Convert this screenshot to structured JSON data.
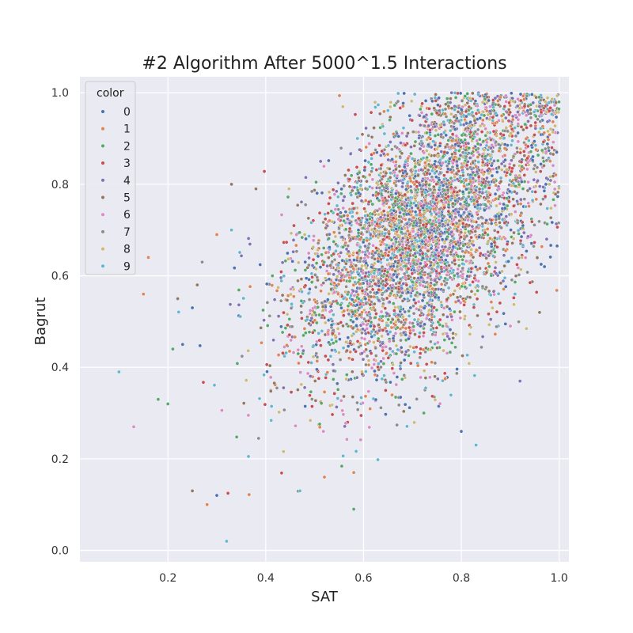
{
  "chart_data": {
    "type": "scatter",
    "title": "#2 Algorithm After 5000^1.5 Interactions",
    "xlabel": "SAT",
    "ylabel": "Bagrut",
    "xlim": [
      0.02,
      1.02
    ],
    "ylim": [
      -0.025,
      1.035
    ],
    "xticks": [
      0.2,
      0.4,
      0.6,
      0.8,
      1.0
    ],
    "yticks": [
      0.0,
      0.2,
      0.4,
      0.6,
      0.8,
      1.0
    ],
    "xtick_labels": [
      "0.2",
      "0.4",
      "0.6",
      "0.8",
      "1.0"
    ],
    "ytick_labels": [
      "0.0",
      "0.2",
      "0.4",
      "0.6",
      "0.8",
      "1.0"
    ],
    "grid": true,
    "background": "#eaeaf2",
    "gridline_color": "#ffffff",
    "legend_placement": "top-left",
    "legend_title": "color",
    "point_count": 5000,
    "series": [
      {
        "name": "0",
        "color": "#4c72b0"
      },
      {
        "name": "1",
        "color": "#dd8452"
      },
      {
        "name": "2",
        "color": "#55a868"
      },
      {
        "name": "3",
        "color": "#c44e52"
      },
      {
        "name": "4",
        "color": "#8172b3"
      },
      {
        "name": "5",
        "color": "#937860"
      },
      {
        "name": "6",
        "color": "#da8bc3"
      },
      {
        "name": "7",
        "color": "#8c8c8c"
      },
      {
        "name": "8",
        "color": "#ccb974"
      },
      {
        "name": "9",
        "color": "#64b5cd"
      }
    ],
    "sample_points": [
      {
        "x": 0.1,
        "y": 0.39,
        "color": "9"
      },
      {
        "x": 0.13,
        "y": 0.27,
        "color": "6"
      },
      {
        "x": 0.15,
        "y": 0.56,
        "color": "1"
      },
      {
        "x": 0.16,
        "y": 0.64,
        "color": "1"
      },
      {
        "x": 0.18,
        "y": 0.33,
        "color": "2"
      },
      {
        "x": 0.2,
        "y": 0.32,
        "color": "2"
      },
      {
        "x": 0.21,
        "y": 0.44,
        "color": "2"
      },
      {
        "x": 0.22,
        "y": 0.55,
        "color": "5"
      },
      {
        "x": 0.23,
        "y": 0.45,
        "color": "0"
      },
      {
        "x": 0.25,
        "y": 0.13,
        "color": "5"
      },
      {
        "x": 0.25,
        "y": 0.53,
        "color": "0"
      },
      {
        "x": 0.26,
        "y": 0.58,
        "color": "5"
      },
      {
        "x": 0.27,
        "y": 0.63,
        "color": "7"
      },
      {
        "x": 0.28,
        "y": 0.1,
        "color": "1"
      },
      {
        "x": 0.3,
        "y": 0.12,
        "color": "0"
      },
      {
        "x": 0.3,
        "y": 0.69,
        "color": "1"
      },
      {
        "x": 0.32,
        "y": 0.02,
        "color": "9"
      },
      {
        "x": 0.33,
        "y": 0.8,
        "color": "5"
      },
      {
        "x": 0.33,
        "y": 0.7,
        "color": "9"
      },
      {
        "x": 0.38,
        "y": 0.79,
        "color": "5"
      },
      {
        "x": 0.47,
        "y": 0.13,
        "color": "9"
      },
      {
        "x": 0.52,
        "y": 0.16,
        "color": "1"
      },
      {
        "x": 0.58,
        "y": 0.17,
        "color": "1"
      },
      {
        "x": 0.58,
        "y": 0.09,
        "color": "2"
      },
      {
        "x": 0.78,
        "y": 1.0,
        "color": "4"
      },
      {
        "x": 0.83,
        "y": 0.23,
        "color": "9"
      },
      {
        "x": 0.8,
        "y": 0.26,
        "color": "0"
      },
      {
        "x": 0.88,
        "y": 0.99,
        "color": "1"
      },
      {
        "x": 0.92,
        "y": 0.37,
        "color": "4"
      },
      {
        "x": 0.97,
        "y": 0.62,
        "color": "0"
      },
      {
        "x": 0.98,
        "y": 0.8,
        "color": "8"
      },
      {
        "x": 0.96,
        "y": 0.97,
        "color": "4"
      },
      {
        "x": 0.96,
        "y": 0.52,
        "color": "5"
      }
    ],
    "bulk_distribution": {
      "description_type": "bivariate_normal",
      "mean_x": 0.72,
      "mean_y": 0.7,
      "sd_x": 0.13,
      "sd_y": 0.16,
      "correlation": 0.55
    }
  }
}
